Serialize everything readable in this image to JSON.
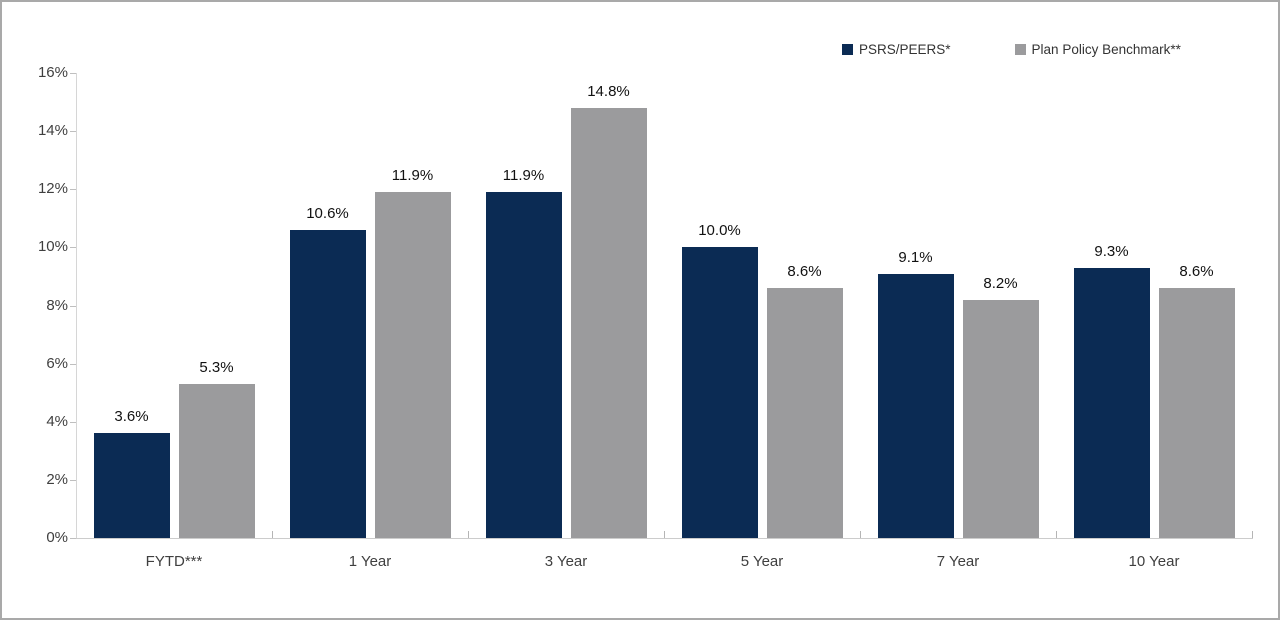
{
  "legend": {
    "items": [
      {
        "label": "PSRS/PEERS*",
        "color": "#0b2b54"
      },
      {
        "label": "Plan Policy Benchmark**",
        "color": "#9b9b9d"
      }
    ]
  },
  "chart_data": {
    "type": "bar",
    "title": "",
    "xlabel": "",
    "ylabel": "",
    "categories": [
      "FYTD***",
      "1 Year",
      "3 Year",
      "5 Year",
      "7 Year",
      "10 Year"
    ],
    "series": [
      {
        "name": "PSRS/PEERS*",
        "color": "#0b2b54",
        "values": [
          3.6,
          10.6,
          11.9,
          10.0,
          9.1,
          9.3
        ],
        "labels": [
          "3.6%",
          "10.6%",
          "11.9%",
          "10.0%",
          "9.1%",
          "9.3%"
        ]
      },
      {
        "name": "Plan Policy Benchmark**",
        "color": "#9b9b9d",
        "values": [
          5.3,
          11.9,
          14.8,
          8.6,
          8.2,
          8.6
        ],
        "labels": [
          "5.3%",
          "11.9%",
          "14.8%",
          "8.6%",
          "8.2%",
          "8.6%"
        ]
      }
    ],
    "ylim": [
      0,
      16
    ],
    "ytick_step": 2,
    "ytick_labels": [
      "0%",
      "2%",
      "4%",
      "6%",
      "8%",
      "10%",
      "12%",
      "14%",
      "16%"
    ],
    "grid": "off",
    "legend_position": "top-right"
  }
}
